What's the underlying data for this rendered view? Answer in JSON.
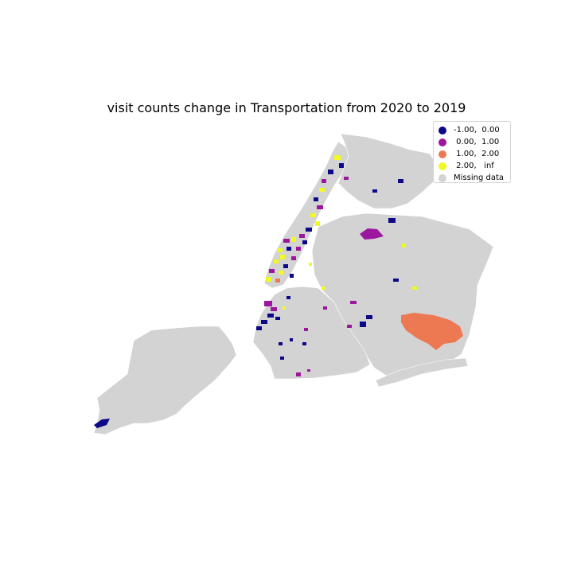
{
  "chart": {
    "title": "visit counts  change in Transportation from 2020 to 2019"
  },
  "legend": {
    "items": [
      {
        "label": "-1.00,  0.00",
        "color": "#0d0887"
      },
      {
        "label": " 0.00,  1.00",
        "color": "#9c179e"
      },
      {
        "label": " 1.00,  2.00",
        "color": "#ed7953"
      },
      {
        "label": " 2.00,   inf",
        "color": "#f0f921"
      },
      {
        "label": "Missing data",
        "color": "#d3d3d3"
      }
    ]
  },
  "colors": {
    "missing": "#d3d3d3",
    "bin_neg1_0": "#0d0887",
    "bin_0_1": "#9c179e",
    "bin_1_2": "#ed7953",
    "bin_2_inf": "#f0f921"
  }
}
